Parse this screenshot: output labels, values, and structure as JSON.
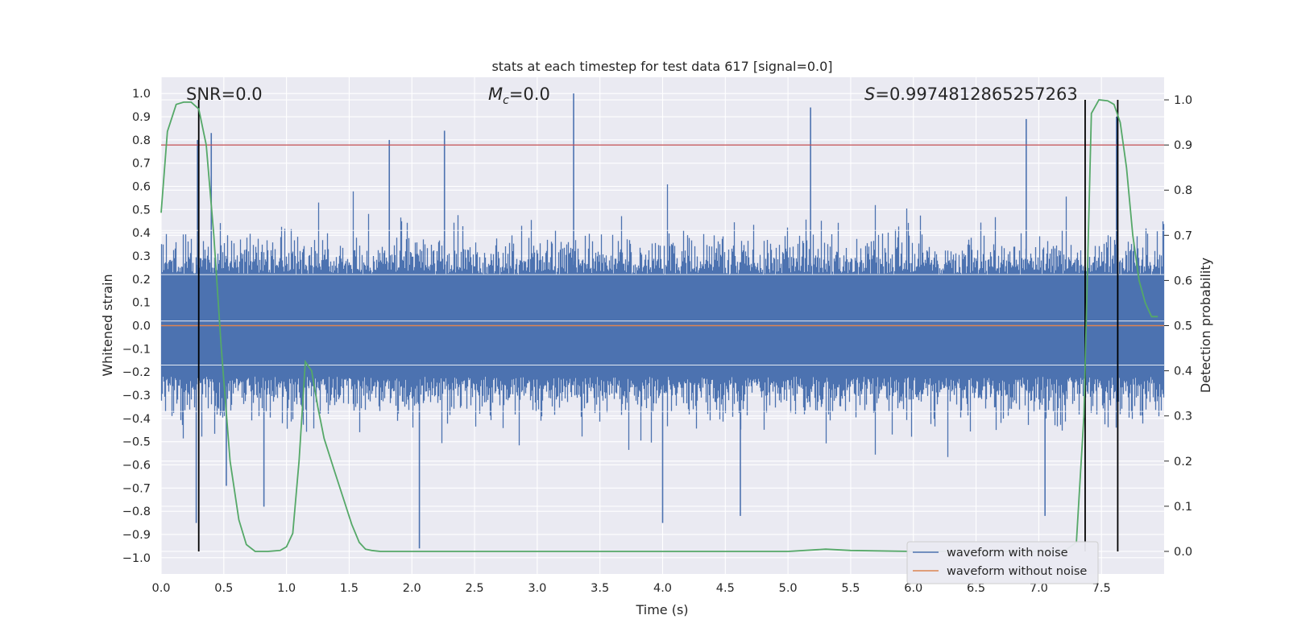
{
  "chart_data": {
    "type": "line",
    "title": "stats at each timestep for test data 617 [signal=0.0]",
    "xlabel": "Time (s)",
    "ylabel": "Whitened strain",
    "y2label": "Detection probability",
    "xlim": [
      0.0,
      8.0
    ],
    "ylim": [
      -1.07,
      1.07
    ],
    "y2lim": [
      -0.05,
      1.05
    ],
    "x_ticks": [
      "0.0",
      "0.5",
      "1.0",
      "1.5",
      "2.0",
      "2.5",
      "3.0",
      "3.5",
      "4.0",
      "4.5",
      "5.0",
      "5.5",
      "6.0",
      "6.5",
      "7.0",
      "7.5"
    ],
    "y_ticks": [
      "1.0",
      "0.9",
      "0.8",
      "0.7",
      "0.6",
      "0.5",
      "0.4",
      "0.3",
      "0.2",
      "0.1",
      "0.0",
      "-0.1",
      "-0.2",
      "-0.3",
      "-0.4",
      "-0.5",
      "-0.6",
      "-0.7",
      "-0.8",
      "-0.9",
      "-1.0"
    ],
    "y2_ticks": [
      "1.0",
      "0.9",
      "0.8",
      "0.7",
      "0.6",
      "0.5",
      "0.4",
      "0.3",
      "0.2",
      "0.1",
      "0.0"
    ],
    "grid": true,
    "legend_position": "lower-right",
    "annotations": {
      "snr": "SNR=0.0",
      "mc": "=0.0",
      "mc_symbol": "M",
      "mc_sub": "c",
      "s": "=0.9974812865257263",
      "s_symbol": "S"
    },
    "colors": {
      "background": "#eaeaf2",
      "grid": "#ffffff",
      "waveform_noise": "#4c72b0",
      "waveform_clean": "#dd8452",
      "probability": "#55a868",
      "threshold": "#c44e52",
      "markers": "#000000"
    },
    "threshold_y2": 0.9,
    "marker_lines_x": [
      0.3,
      7.37,
      7.63
    ],
    "series": [
      {
        "name": "waveform with noise",
        "kind": "noise",
        "approx_envelope": {
          "typical_positive": 0.45,
          "typical_negative": -0.45,
          "dense_band": 0.22
        },
        "peaks": [
          {
            "x": 0.28,
            "y": -0.85
          },
          {
            "x": 0.29,
            "y": 0.8
          },
          {
            "x": 0.4,
            "y": 0.83
          },
          {
            "x": 0.52,
            "y": -0.69
          },
          {
            "x": 0.82,
            "y": -0.78
          },
          {
            "x": 1.82,
            "y": 0.8
          },
          {
            "x": 2.06,
            "y": -0.96
          },
          {
            "x": 2.26,
            "y": 0.84
          },
          {
            "x": 3.29,
            "y": 1.0
          },
          {
            "x": 4.0,
            "y": -0.85
          },
          {
            "x": 4.62,
            "y": -0.82
          },
          {
            "x": 5.18,
            "y": 0.94
          },
          {
            "x": 6.9,
            "y": 0.89
          },
          {
            "x": 7.05,
            "y": -0.82
          },
          {
            "x": 7.62,
            "y": 0.9
          }
        ]
      },
      {
        "name": "waveform without noise",
        "kind": "flat",
        "value": 0.0
      },
      {
        "name": "detection probability",
        "kind": "line",
        "axis": "y2",
        "x": [
          0.0,
          0.05,
          0.12,
          0.18,
          0.24,
          0.3,
          0.36,
          0.42,
          0.48,
          0.55,
          0.62,
          0.68,
          0.75,
          0.85,
          0.95,
          1.0,
          1.05,
          1.1,
          1.15,
          1.2,
          1.25,
          1.3,
          1.38,
          1.45,
          1.52,
          1.58,
          1.63,
          1.68,
          1.75,
          2.0,
          3.0,
          4.0,
          5.0,
          5.3,
          5.5,
          6.0,
          6.5,
          7.0,
          7.2,
          7.3,
          7.36,
          7.42,
          7.48,
          7.55,
          7.6,
          7.65,
          7.7,
          7.75,
          7.8,
          7.85,
          7.9,
          7.95
        ],
        "y": [
          0.75,
          0.93,
          0.99,
          0.995,
          0.995,
          0.98,
          0.9,
          0.7,
          0.45,
          0.2,
          0.07,
          0.015,
          0.0,
          0.0,
          0.002,
          0.01,
          0.04,
          0.2,
          0.42,
          0.4,
          0.32,
          0.25,
          0.18,
          0.12,
          0.06,
          0.02,
          0.005,
          0.002,
          0.0,
          0.0,
          0.0,
          0.0,
          0.0,
          0.005,
          0.002,
          0.0,
          0.0,
          0.0,
          0.0,
          0.02,
          0.3,
          0.97,
          1.0,
          0.998,
          0.99,
          0.95,
          0.85,
          0.7,
          0.6,
          0.55,
          0.52,
          0.52
        ]
      }
    ]
  }
}
